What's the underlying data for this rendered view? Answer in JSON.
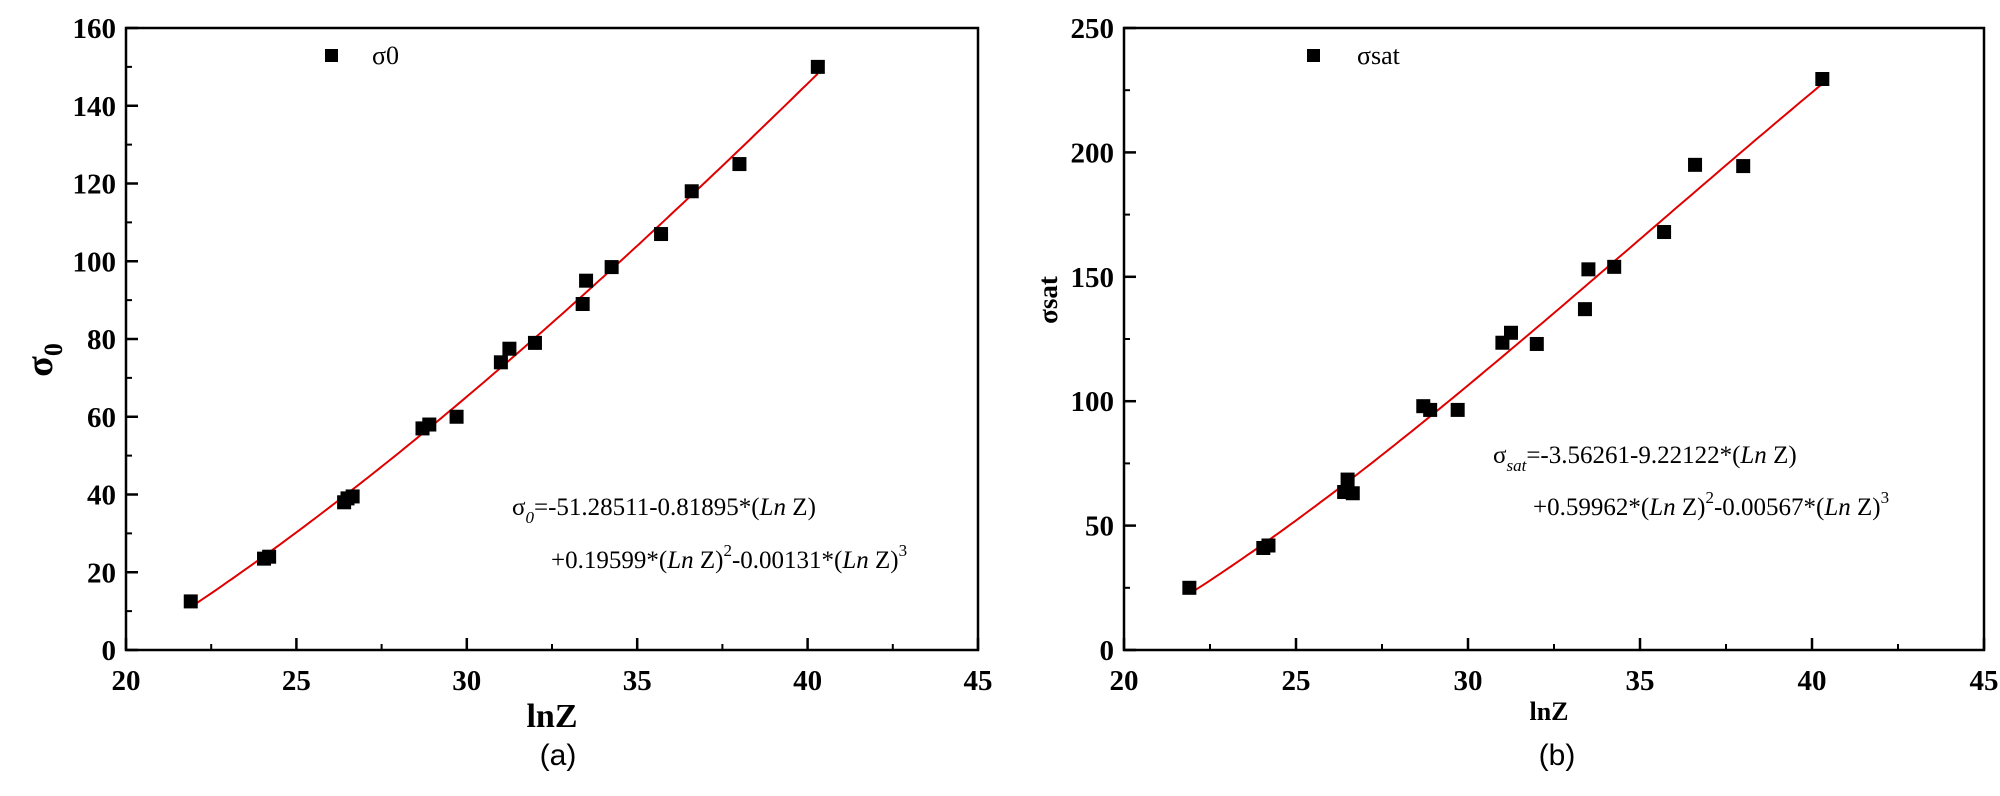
{
  "chart_data": [
    {
      "type": "scatter",
      "panel_caption": "(a)",
      "xlabel": "lnZ",
      "ylabel": "σ",
      "ylabel_subscript": "0",
      "xlim": [
        20,
        45
      ],
      "ylim": [
        0,
        160
      ],
      "xticks": [
        "20",
        "25",
        "30",
        "35",
        "40",
        "45"
      ],
      "yticks": [
        "0",
        "20",
        "40",
        "60",
        "80",
        "100",
        "120",
        "140",
        "160"
      ],
      "legend": {
        "label": "σ0",
        "placement": "top-left"
      },
      "series": [
        {
          "name": "σ0",
          "marker": "square",
          "color": "#000000",
          "points": [
            [
              21.9,
              12.5
            ],
            [
              24.05,
              23.5
            ],
            [
              24.2,
              24.0
            ],
            [
              26.4,
              38.0
            ],
            [
              26.5,
              39.0
            ],
            [
              26.65,
              39.5
            ],
            [
              28.7,
              57.0
            ],
            [
              28.9,
              58.0
            ],
            [
              29.7,
              60.0
            ],
            [
              31.0,
              74.0
            ],
            [
              31.25,
              77.5
            ],
            [
              32.0,
              79.0
            ],
            [
              33.4,
              89.0
            ],
            [
              33.5,
              95.0
            ],
            [
              34.25,
              98.5
            ],
            [
              35.7,
              107.0
            ],
            [
              36.6,
              118.0
            ],
            [
              38.0,
              125.0
            ],
            [
              40.3,
              150.0
            ]
          ]
        }
      ],
      "fit": {
        "color": "#e00000",
        "x_range": [
          21.9,
          40.3
        ],
        "coefficients": [
          -51.28511,
          -0.81895,
          0.19599,
          -0.00131
        ]
      },
      "equation": {
        "line1_symbol": "σ",
        "line1_subscript": "0",
        "line1_text": "=-51.28511-0.81895*(",
        "line1_ln": "Ln",
        "line1_end": " Z)",
        "line2_text1": "+0.19599*(",
        "line2_ln1": "Ln",
        "line2_z1": " Z)",
        "line2_exp1": "2",
        "line2_text2": "-0.00131*(",
        "line2_ln2": "Ln",
        "line2_z2": " Z)",
        "line2_exp2": "3"
      }
    },
    {
      "type": "scatter",
      "panel_caption": "(b)",
      "xlabel": "lnZ",
      "ylabel": "σsat",
      "xlim": [
        20,
        45
      ],
      "ylim": [
        0,
        250
      ],
      "xticks": [
        "20",
        "25",
        "30",
        "35",
        "40",
        "45"
      ],
      "yticks": [
        "0",
        "50",
        "100",
        "150",
        "200",
        "250"
      ],
      "legend": {
        "label": "σsat",
        "placement": "top-left"
      },
      "series": [
        {
          "name": "σsat",
          "marker": "square",
          "color": "#000000",
          "points": [
            [
              21.9,
              25.0
            ],
            [
              24.05,
              41.0
            ],
            [
              24.2,
              42.0
            ],
            [
              26.4,
              63.5
            ],
            [
              26.5,
              68.5
            ],
            [
              26.65,
              63.0
            ],
            [
              28.7,
              98.0
            ],
            [
              28.9,
              96.5
            ],
            [
              29.7,
              96.5
            ],
            [
              31.0,
              123.5
            ],
            [
              31.25,
              127.5
            ],
            [
              32.0,
              123.0
            ],
            [
              33.4,
              137.0
            ],
            [
              33.5,
              153.0
            ],
            [
              34.25,
              154.0
            ],
            [
              35.7,
              168.0
            ],
            [
              36.6,
              195.0
            ],
            [
              38.0,
              194.5
            ],
            [
              40.3,
              229.5
            ]
          ]
        }
      ],
      "fit": {
        "color": "#e00000",
        "x_range": [
          21.9,
          40.3
        ],
        "coefficients": [
          -3.56261,
          -9.22122,
          0.59962,
          -0.00567
        ]
      },
      "equation": {
        "line1_symbol": "σ",
        "line1_subscript": "sat",
        "line1_text": "=-3.56261-9.22122*(",
        "line1_ln": "Ln",
        "line1_end": " Z)",
        "line2_text1": "+0.59962*(",
        "line2_ln1": "Ln",
        "line2_z1": " Z)",
        "line2_exp1": "2",
        "line2_text2": "-0.00567*(",
        "line2_ln2": "Ln",
        "line2_z2": " Z)",
        "line2_exp2": "3"
      }
    }
  ]
}
